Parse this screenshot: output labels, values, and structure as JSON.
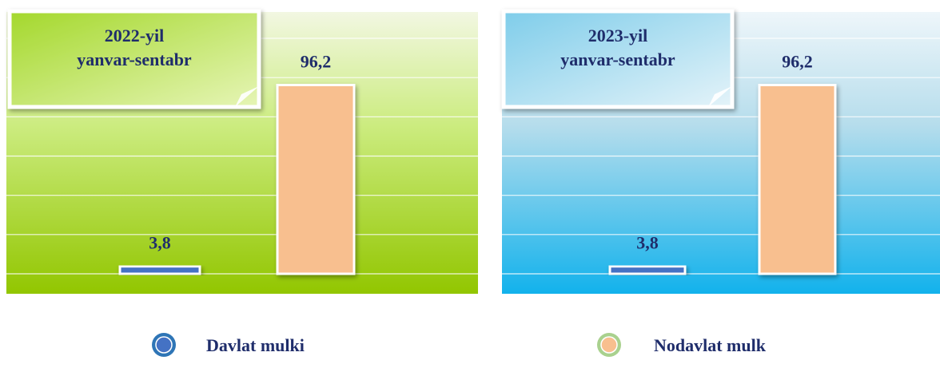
{
  "chart_data": [
    {
      "type": "bar",
      "title": [
        "2022-yil",
        "yanvar-sentabr"
      ],
      "series": [
        {
          "values": [
            3.8
          ],
          "value_labels": [
            "3,8"
          ]
        },
        {
          "values": [
            96.2
          ],
          "value_labels": [
            "96,2"
          ]
        }
      ],
      "ylim": [
        0,
        120
      ],
      "yticks": [
        0,
        20,
        40,
        60,
        80,
        100,
        120
      ],
      "grid": true
    },
    {
      "type": "bar",
      "title": [
        "2023-yil",
        "yanvar-sentabr"
      ],
      "series": [
        {
          "values": [
            3.8
          ],
          "value_labels": [
            "3,8"
          ]
        },
        {
          "values": [
            96.2
          ],
          "value_labels": [
            "96,2"
          ]
        }
      ],
      "ylim": [
        0,
        120
      ],
      "yticks": [
        0,
        20,
        40,
        60,
        80,
        100,
        120
      ],
      "grid": true
    }
  ],
  "legend": [
    {
      "name": "Davlat mulki",
      "color": "#4472c4"
    },
    {
      "name": "Nodavlat mulk",
      "color": "#f8bf8f"
    }
  ]
}
